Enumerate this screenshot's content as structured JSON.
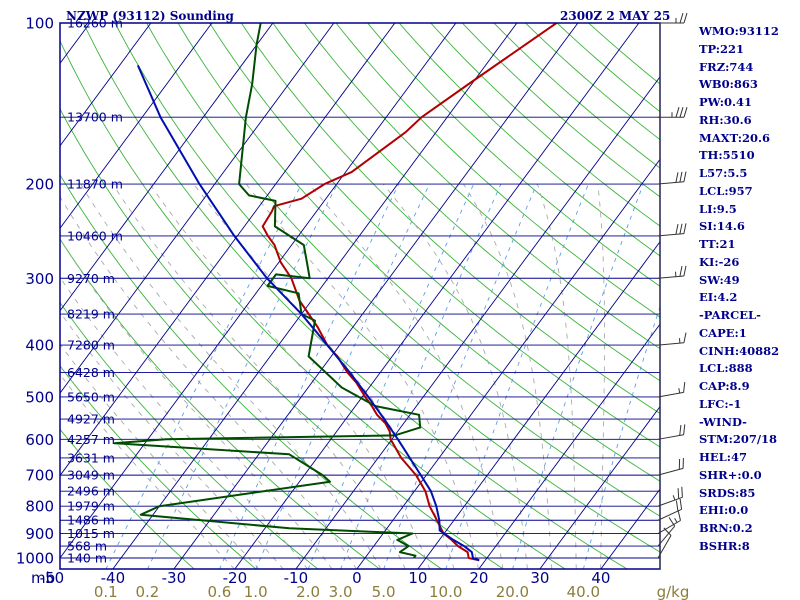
{
  "header": {
    "title": "NZWP (93112) Sounding",
    "valid_time": "2300Z  2 MAY 25"
  },
  "colors": {
    "frame": "#00008b",
    "isobar": "#00008b",
    "isotherm": "#00008b",
    "dry_adiabat": "#3cb43c",
    "moist_adiabat": "#aaaaaa",
    "mixing_ratio": "#5a9fe8",
    "temperature": "#b00000",
    "dewpoint": "#004d00",
    "parcel": "#0010b0",
    "wind_barb": "#333333",
    "mixing_ratio_label": "#8b7d3a"
  },
  "indices": [
    "WMO:93112",
    "TP:221",
    "FRZ:744",
    "WB0:863",
    "PW:0.41",
    "RH:30.6",
    "MAXT:20.6",
    "TH:5510",
    "L57:5.5",
    "LCL:957",
    "LI:9.5",
    "SI:14.6",
    "TT:21",
    "KI:-26",
    "SW:49",
    "EI:4.2",
    "-PARCEL-",
    "CAPE:1",
    "CINH:40882",
    "LCL:888",
    "CAP:8.9",
    "LFC:-1",
    "-WIND-",
    "STM:207/18",
    "HEL:47",
    "SHR+:0.0",
    "SRDS:85",
    "EHI:0.0",
    "BRN:0.2",
    "BSHR:8"
  ],
  "chart_data": {
    "type": "line",
    "subtype": "skew-T log-P",
    "x_unit_symbol": "mb",
    "mixing_ratio_unit": "g/kg",
    "pressure_ticks": [
      "100",
      "200",
      "300",
      "400",
      "500",
      "600",
      "700",
      "800",
      "900",
      "1000"
    ],
    "height_labels": [
      {
        "p": 100,
        "label": "16260 m"
      },
      {
        "p": 150,
        "label": "13700 m"
      },
      {
        "p": 200,
        "label": "11870 m"
      },
      {
        "p": 250,
        "label": "10460 m"
      },
      {
        "p": 300,
        "label": "9270 m"
      },
      {
        "p": 350,
        "label": "8219 m"
      },
      {
        "p": 400,
        "label": "7280 m"
      },
      {
        "p": 450,
        "label": "6428 m"
      },
      {
        "p": 500,
        "label": "5650 m"
      },
      {
        "p": 550,
        "label": "4927 m"
      },
      {
        "p": 600,
        "label": "4257 m"
      },
      {
        "p": 650,
        "label": "3631 m"
      },
      {
        "p": 700,
        "label": "3049 m"
      },
      {
        "p": 750,
        "label": "2496 m"
      },
      {
        "p": 800,
        "label": "1979 m"
      },
      {
        "p": 850,
        "label": "1486 m"
      },
      {
        "p": 900,
        "label": "1015 m"
      },
      {
        "p": 950,
        "label": "568 m"
      },
      {
        "p": 1000,
        "label": "140 m"
      }
    ],
    "temperature_ticks": [
      {
        "t": -50,
        "label": "-50"
      },
      {
        "t": -40,
        "label": "-40"
      },
      {
        "t": -30,
        "label": "-30"
      },
      {
        "t": -20,
        "label": "-20"
      },
      {
        "t": -10,
        "label": "-10"
      },
      {
        "t": 0,
        "label": "0"
      },
      {
        "t": 10,
        "label": "10"
      },
      {
        "t": 20,
        "label": "20"
      },
      {
        "t": 30,
        "label": "30"
      },
      {
        "t": 40,
        "label": "40"
      }
    ],
    "mixing_ratio_ticks": [
      {
        "w": 0.1,
        "label": "0.1"
      },
      {
        "w": 0.2,
        "label": "0.2"
      },
      {
        "w": 0.6,
        "label": "0.6"
      },
      {
        "w": 1.0,
        "label": "1.0"
      },
      {
        "w": 2.0,
        "label": "2.0"
      },
      {
        "w": 3.0,
        "label": "3.0"
      },
      {
        "w": 5.0,
        "label": "5.0"
      },
      {
        "w": 10.0,
        "label": "10.0"
      },
      {
        "w": 20.0,
        "label": "20.0"
      },
      {
        "w": 40.0,
        "label": "40.0"
      }
    ],
    "series": [
      {
        "key": "temperature",
        "points": [
          [
            1010,
            19.0
          ],
          [
            1000,
            17.0
          ],
          [
            975,
            16.1
          ],
          [
            950,
            13.8
          ],
          [
            925,
            12.0
          ],
          [
            900,
            9.9
          ],
          [
            850,
            7.2
          ],
          [
            800,
            4.3
          ],
          [
            750,
            1.8
          ],
          [
            700,
            -1.7
          ],
          [
            650,
            -6.2
          ],
          [
            600,
            -10.2
          ],
          [
            580,
            -11.3
          ],
          [
            560,
            -13.0
          ],
          [
            540,
            -15.4
          ],
          [
            520,
            -17.3
          ],
          [
            500,
            -19.5
          ],
          [
            470,
            -22.7
          ],
          [
            450,
            -25.4
          ],
          [
            420,
            -29.0
          ],
          [
            400,
            -32.0
          ],
          [
            370,
            -35.8
          ],
          [
            330,
            -42.0
          ],
          [
            300,
            -46.0
          ],
          [
            280,
            -49.7
          ],
          [
            260,
            -52.8
          ],
          [
            250,
            -55.0
          ],
          [
            240,
            -57.0
          ],
          [
            225,
            -57.3
          ],
          [
            220,
            -57.6
          ],
          [
            213,
            -54.0
          ],
          [
            200,
            -52.0
          ],
          [
            190,
            -49.0
          ],
          [
            160,
            -45.0
          ],
          [
            150,
            -44.2
          ],
          [
            130,
            -40.5
          ],
          [
            100,
            -33.5
          ]
        ]
      },
      {
        "key": "dewpoint",
        "points": [
          [
            1000,
            8.0
          ],
          [
            990,
            8.0
          ],
          [
            975,
            5.0
          ],
          [
            950,
            5.7
          ],
          [
            925,
            3.1
          ],
          [
            900,
            4.8
          ],
          [
            880,
            -16.0
          ],
          [
            830,
            -42.0
          ],
          [
            800,
            -40.0
          ],
          [
            720,
            -15.0
          ],
          [
            700,
            -17.0
          ],
          [
            640,
            -25.0
          ],
          [
            610,
            -55.0
          ],
          [
            600,
            -47.0
          ],
          [
            590,
            -10.0
          ],
          [
            570,
            -6.8
          ],
          [
            540,
            -8.5
          ],
          [
            520,
            -16.7
          ],
          [
            480,
            -24.5
          ],
          [
            420,
            -33.7
          ],
          [
            360,
            -37.0
          ],
          [
            350,
            -40.0
          ],
          [
            320,
            -43.0
          ],
          [
            310,
            -49.0
          ],
          [
            295,
            -49.0
          ],
          [
            300,
            -43.0
          ],
          [
            280,
            -45.4
          ],
          [
            260,
            -48.0
          ],
          [
            240,
            -55.0
          ],
          [
            215,
            -58.0
          ],
          [
            210,
            -63.0
          ],
          [
            200,
            -66.0
          ],
          [
            150,
            -73.0
          ],
          [
            130,
            -76.0
          ],
          [
            110,
            -80.0
          ],
          [
            100,
            -82.0
          ]
        ]
      },
      {
        "key": "parcel",
        "points": [
          [
            1010,
            19.0
          ],
          [
            1000,
            17.7
          ],
          [
            975,
            16.8
          ],
          [
            950,
            14.8
          ],
          [
            925,
            12.3
          ],
          [
            888,
            8.9
          ],
          [
            850,
            7.6
          ],
          [
            800,
            5.4
          ],
          [
            750,
            2.7
          ],
          [
            700,
            -0.9
          ],
          [
            650,
            -4.8
          ],
          [
            600,
            -9.0
          ],
          [
            550,
            -13.7
          ],
          [
            500,
            -19.0
          ],
          [
            450,
            -25.0
          ],
          [
            400,
            -32.0
          ],
          [
            350,
            -40.0
          ],
          [
            300,
            -50.0
          ],
          [
            250,
            -60.5
          ],
          [
            200,
            -72.5
          ],
          [
            150,
            -87.0
          ],
          [
            120,
            -97.0
          ]
        ]
      }
    ],
    "wind_profile": [
      {
        "p": 1000,
        "dir": 210,
        "spd": 10
      },
      {
        "p": 950,
        "dir": 220,
        "spd": 10
      },
      {
        "p": 900,
        "dir": 240,
        "spd": 15
      },
      {
        "p": 850,
        "dir": 245,
        "spd": 20
      },
      {
        "p": 800,
        "dir": 250,
        "spd": 25
      },
      {
        "p": 700,
        "dir": 255,
        "spd": 20
      },
      {
        "p": 600,
        "dir": 260,
        "spd": 20
      },
      {
        "p": 500,
        "dir": 260,
        "spd": 15
      },
      {
        "p": 400,
        "dir": 265,
        "spd": 15
      },
      {
        "p": 300,
        "dir": 265,
        "spd": 25
      },
      {
        "p": 250,
        "dir": 265,
        "spd": 30
      },
      {
        "p": 200,
        "dir": 265,
        "spd": 30
      },
      {
        "p": 150,
        "dir": 270,
        "spd": 35
      },
      {
        "p": 100,
        "dir": 270,
        "spd": 25
      }
    ],
    "ylim": [
      1050,
      100
    ],
    "xlim": [
      -50,
      50
    ]
  }
}
